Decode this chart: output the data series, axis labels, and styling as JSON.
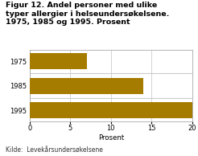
{
  "title": "Figur 12. Andel personer med ulike\ntyper allergier i helseundersøkelsene.\n1975, 1985 og 1995. Prosent",
  "categories": [
    "1995",
    "1985",
    "1975"
  ],
  "values": [
    20,
    14,
    7
  ],
  "bar_color": "#A67C00",
  "xlabel": "Prosent",
  "xlim": [
    0,
    20
  ],
  "xticks": [
    0,
    5,
    10,
    15,
    20
  ],
  "source": "Kilde:  Levekårsundersøkelsene",
  "title_fontsize": 6.8,
  "tick_fontsize": 6.0,
  "xlabel_fontsize": 6.2,
  "source_fontsize": 5.5,
  "background_color": "#ffffff",
  "grid_color": "#cccccc",
  "spine_color": "#aaaaaa"
}
